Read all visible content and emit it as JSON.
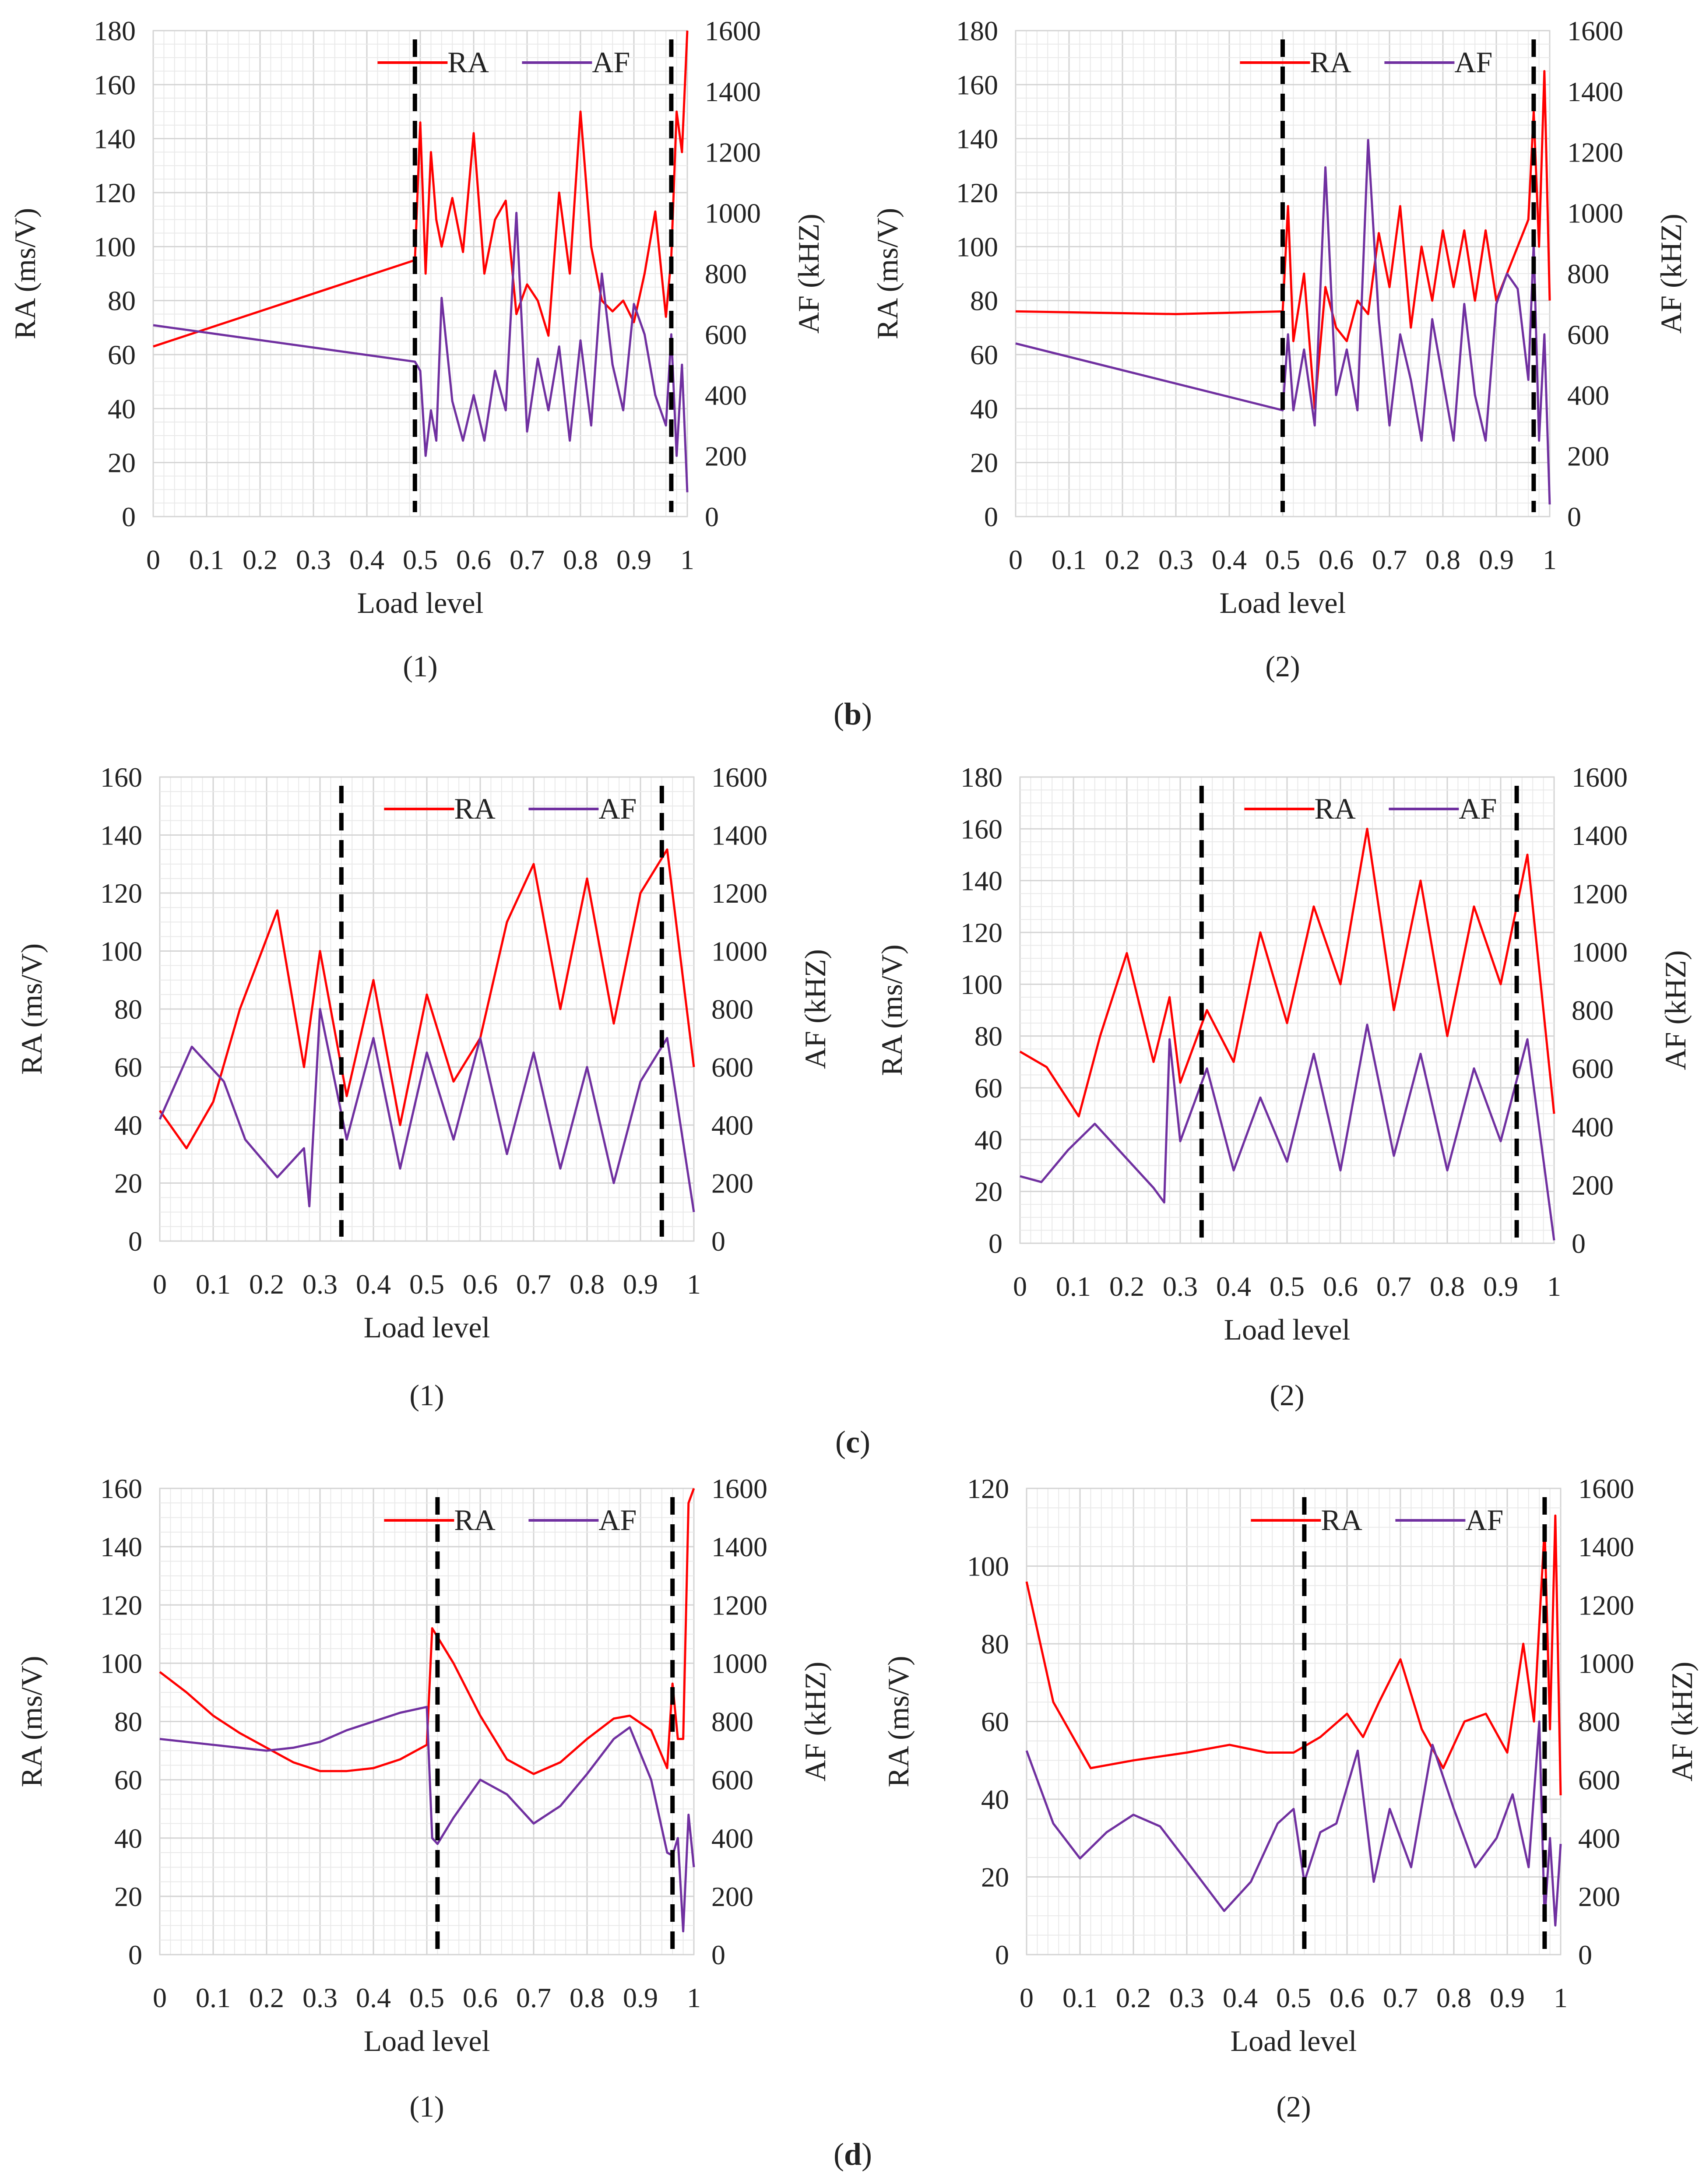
{
  "colors": {
    "RA": "#ff0000",
    "AF": "#7030a0",
    "marker": "#000000"
  },
  "group_captions": [
    "b",
    "c",
    "d"
  ],
  "chart_data": [
    {
      "type": "line",
      "group": "b",
      "caption": "(1)",
      "xlabel": "Load level",
      "ylabel": "RA (ms/V)",
      "y2label": "AF (kHZ)",
      "xlim": [
        0,
        1
      ],
      "ylim": [
        0,
        180
      ],
      "y2lim": [
        0,
        1600
      ],
      "xticks": [
        "0",
        "0.1",
        "0.2",
        "0.3",
        "0.4",
        "0.5",
        "0.6",
        "0.7",
        "0.8",
        "0.9",
        "1"
      ],
      "yticks": [
        "0",
        "20",
        "40",
        "60",
        "80",
        "100",
        "120",
        "140",
        "160",
        "180"
      ],
      "y2ticks": [
        "0",
        "200",
        "400",
        "600",
        "800",
        "1000",
        "1200",
        "1400",
        "1600"
      ],
      "legend": [
        "RA",
        "AF"
      ],
      "legend_position": "top-right",
      "grid": true,
      "vlines": [
        0.49,
        0.97
      ],
      "series": [
        {
          "name": "RA",
          "axis": "left",
          "x": [
            0,
            0.49,
            0.5,
            0.51,
            0.52,
            0.53,
            0.54,
            0.56,
            0.58,
            0.6,
            0.62,
            0.64,
            0.66,
            0.68,
            0.7,
            0.72,
            0.74,
            0.76,
            0.78,
            0.8,
            0.82,
            0.84,
            0.86,
            0.88,
            0.9,
            0.92,
            0.94,
            0.96,
            0.97,
            0.98,
            0.99,
            1
          ],
          "y": [
            63,
            95,
            146,
            90,
            135,
            110,
            100,
            118,
            98,
            142,
            90,
            110,
            117,
            75,
            86,
            80,
            67,
            120,
            90,
            150,
            100,
            80,
            76,
            80,
            72,
            90,
            113,
            74,
            96,
            150,
            135,
            180
          ]
        },
        {
          "name": "AF",
          "axis": "right",
          "x": [
            0,
            0.49,
            0.5,
            0.51,
            0.52,
            0.53,
            0.54,
            0.56,
            0.58,
            0.6,
            0.62,
            0.64,
            0.66,
            0.68,
            0.7,
            0.72,
            0.74,
            0.76,
            0.78,
            0.8,
            0.82,
            0.84,
            0.86,
            0.88,
            0.9,
            0.92,
            0.94,
            0.96,
            0.97,
            0.98,
            0.99,
            1
          ],
          "y": [
            630,
            510,
            480,
            200,
            350,
            250,
            720,
            380,
            250,
            400,
            250,
            480,
            350,
            1000,
            280,
            520,
            350,
            560,
            250,
            580,
            300,
            800,
            500,
            350,
            700,
            600,
            400,
            300,
            600,
            200,
            500,
            80
          ]
        }
      ]
    },
    {
      "type": "line",
      "group": "b",
      "caption": "(2)",
      "xlabel": "Load level",
      "ylabel": "RA (ms/V)",
      "y2label": "AF (kHZ)",
      "xlim": [
        0,
        1
      ],
      "ylim": [
        0,
        180
      ],
      "y2lim": [
        0,
        1600
      ],
      "xticks": [
        "0",
        "0.1",
        "0.2",
        "0.3",
        "0.4",
        "0.5",
        "0.6",
        "0.7",
        "0.8",
        "0.9",
        "1"
      ],
      "yticks": [
        "0",
        "20",
        "40",
        "60",
        "80",
        "100",
        "120",
        "140",
        "160",
        "180"
      ],
      "y2ticks": [
        "0",
        "200",
        "400",
        "600",
        "800",
        "1000",
        "1200",
        "1400",
        "1600"
      ],
      "legend": [
        "RA",
        "AF"
      ],
      "legend_position": "top-right",
      "grid": true,
      "vlines": [
        0.5,
        0.97
      ],
      "series": [
        {
          "name": "RA",
          "axis": "left",
          "x": [
            0,
            0.3,
            0.5,
            0.51,
            0.52,
            0.54,
            0.56,
            0.58,
            0.6,
            0.62,
            0.64,
            0.66,
            0.68,
            0.7,
            0.72,
            0.74,
            0.76,
            0.78,
            0.8,
            0.82,
            0.84,
            0.86,
            0.88,
            0.9,
            0.92,
            0.94,
            0.96,
            0.97,
            0.98,
            0.99,
            1
          ],
          "y": [
            76,
            75,
            76,
            115,
            65,
            90,
            40,
            85,
            70,
            65,
            80,
            75,
            105,
            85,
            115,
            70,
            100,
            80,
            106,
            85,
            106,
            80,
            106,
            80,
            90,
            100,
            110,
            150,
            100,
            165,
            80
          ]
        },
        {
          "name": "AF",
          "axis": "right",
          "x": [
            0,
            0.5,
            0.51,
            0.52,
            0.54,
            0.56,
            0.58,
            0.6,
            0.62,
            0.64,
            0.66,
            0.68,
            0.7,
            0.72,
            0.74,
            0.76,
            0.78,
            0.8,
            0.82,
            0.84,
            0.86,
            0.88,
            0.9,
            0.92,
            0.94,
            0.96,
            0.97,
            0.98,
            0.99,
            1
          ],
          "y": [
            570,
            350,
            600,
            350,
            550,
            300,
            1150,
            400,
            550,
            350,
            1240,
            650,
            300,
            600,
            450,
            250,
            650,
            450,
            250,
            700,
            400,
            250,
            700,
            800,
            750,
            450,
            900,
            250,
            600,
            40
          ]
        }
      ]
    },
    {
      "type": "line",
      "group": "c",
      "caption": "(1)",
      "xlabel": "Load level",
      "ylabel": "RA (ms/V)",
      "y2label": "AF (kHZ)",
      "xlim": [
        0,
        1
      ],
      "ylim": [
        0,
        160
      ],
      "y2lim": [
        0,
        1600
      ],
      "xticks": [
        "0",
        "0.1",
        "0.2",
        "0.3",
        "0.4",
        "0.5",
        "0.6",
        "0.7",
        "0.8",
        "0.9",
        "1"
      ],
      "yticks": [
        "0",
        "20",
        "40",
        "60",
        "80",
        "100",
        "120",
        "140",
        "160"
      ],
      "y2ticks": [
        "0",
        "200",
        "400",
        "600",
        "800",
        "1000",
        "1200",
        "1400",
        "1600"
      ],
      "legend": [
        "RA",
        "AF"
      ],
      "legend_position": "top-right",
      "grid": true,
      "vlines": [
        0.34,
        0.94
      ],
      "series": [
        {
          "name": "RA",
          "axis": "left",
          "x": [
            0,
            0.05,
            0.1,
            0.15,
            0.22,
            0.27,
            0.3,
            0.35,
            0.4,
            0.45,
            0.5,
            0.55,
            0.6,
            0.65,
            0.7,
            0.75,
            0.8,
            0.85,
            0.9,
            0.95,
            1
          ],
          "y": [
            45,
            32,
            48,
            80,
            114,
            60,
            100,
            50,
            90,
            40,
            85,
            55,
            70,
            110,
            130,
            80,
            125,
            75,
            120,
            135,
            60
          ]
        },
        {
          "name": "AF",
          "axis": "right",
          "x": [
            0,
            0.06,
            0.12,
            0.16,
            0.22,
            0.27,
            0.28,
            0.3,
            0.35,
            0.4,
            0.45,
            0.5,
            0.55,
            0.6,
            0.65,
            0.7,
            0.75,
            0.8,
            0.85,
            0.9,
            0.95,
            1
          ],
          "y": [
            420,
            670,
            550,
            350,
            220,
            320,
            120,
            800,
            350,
            700,
            250,
            650,
            350,
            700,
            300,
            650,
            250,
            600,
            200,
            550,
            700,
            100
          ]
        }
      ]
    },
    {
      "type": "line",
      "group": "c",
      "caption": "(2)",
      "xlabel": "Load level",
      "ylabel": "RA (ms/V)",
      "y2label": "AF (kHZ)",
      "xlim": [
        0,
        1
      ],
      "ylim": [
        0,
        180
      ],
      "y2lim": [
        0,
        1600
      ],
      "xticks": [
        "0",
        "0.1",
        "0.2",
        "0.3",
        "0.4",
        "0.5",
        "0.6",
        "0.7",
        "0.8",
        "0.9",
        "1"
      ],
      "yticks": [
        "0",
        "20",
        "40",
        "60",
        "80",
        "100",
        "120",
        "140",
        "160",
        "180"
      ],
      "y2ticks": [
        "0",
        "200",
        "400",
        "600",
        "800",
        "1000",
        "1200",
        "1400",
        "1600"
      ],
      "legend": [
        "RA",
        "AF"
      ],
      "legend_position": "top-right",
      "grid": true,
      "vlines": [
        0.34,
        0.93
      ],
      "series": [
        {
          "name": "RA",
          "axis": "left",
          "x": [
            0,
            0.05,
            0.11,
            0.15,
            0.2,
            0.25,
            0.28,
            0.3,
            0.35,
            0.4,
            0.45,
            0.5,
            0.55,
            0.6,
            0.65,
            0.7,
            0.75,
            0.8,
            0.85,
            0.9,
            0.95,
            1
          ],
          "y": [
            74,
            68,
            49,
            80,
            112,
            70,
            95,
            62,
            90,
            70,
            120,
            85,
            130,
            100,
            160,
            90,
            140,
            80,
            130,
            100,
            150,
            50
          ]
        },
        {
          "name": "AF",
          "axis": "right",
          "x": [
            0,
            0.04,
            0.09,
            0.14,
            0.2,
            0.25,
            0.27,
            0.28,
            0.3,
            0.35,
            0.4,
            0.45,
            0.5,
            0.55,
            0.6,
            0.65,
            0.7,
            0.75,
            0.8,
            0.85,
            0.9,
            0.95,
            1
          ],
          "y": [
            230,
            210,
            320,
            410,
            290,
            190,
            140,
            700,
            350,
            600,
            250,
            500,
            280,
            650,
            250,
            750,
            300,
            650,
            250,
            600,
            350,
            700,
            10
          ]
        }
      ]
    },
    {
      "type": "line",
      "group": "d",
      "caption": "(1)",
      "xlabel": "Load level",
      "ylabel": "RA (ms/V)",
      "y2label": "AF (kHZ)",
      "xlim": [
        0,
        1
      ],
      "ylim": [
        0,
        160
      ],
      "y2lim": [
        0,
        1600
      ],
      "xticks": [
        "0",
        "0.1",
        "0.2",
        "0.3",
        "0.4",
        "0.5",
        "0.6",
        "0.7",
        "0.8",
        "0.9",
        "1"
      ],
      "yticks": [
        "0",
        "20",
        "40",
        "60",
        "80",
        "100",
        "120",
        "140",
        "160"
      ],
      "y2ticks": [
        "0",
        "200",
        "400",
        "600",
        "800",
        "1000",
        "1200",
        "1400",
        "1600"
      ],
      "legend": [
        "RA",
        "AF"
      ],
      "legend_position": "top-right",
      "grid": true,
      "vlines": [
        0.52,
        0.96
      ],
      "series": [
        {
          "name": "RA",
          "axis": "left",
          "x": [
            0,
            0.05,
            0.1,
            0.15,
            0.2,
            0.25,
            0.3,
            0.35,
            0.4,
            0.45,
            0.5,
            0.51,
            0.55,
            0.6,
            0.65,
            0.7,
            0.75,
            0.8,
            0.85,
            0.88,
            0.92,
            0.95,
            0.96,
            0.97,
            0.98,
            0.99,
            1
          ],
          "y": [
            97,
            90,
            82,
            76,
            71,
            66,
            63,
            63,
            64,
            67,
            72,
            112,
            100,
            82,
            67,
            62,
            66,
            74,
            81,
            82,
            77,
            64,
            93,
            74,
            74,
            155,
            160
          ]
        },
        {
          "name": "AF",
          "axis": "right",
          "x": [
            0,
            0.1,
            0.2,
            0.25,
            0.3,
            0.35,
            0.4,
            0.45,
            0.5,
            0.51,
            0.52,
            0.55,
            0.6,
            0.65,
            0.7,
            0.75,
            0.8,
            0.85,
            0.88,
            0.92,
            0.95,
            0.96,
            0.97,
            0.98,
            0.99,
            1
          ],
          "y": [
            740,
            720,
            700,
            710,
            730,
            770,
            800,
            830,
            850,
            400,
            380,
            470,
            600,
            550,
            450,
            510,
            620,
            740,
            780,
            600,
            350,
            340,
            400,
            80,
            480,
            300
          ]
        }
      ]
    },
    {
      "type": "line",
      "group": "d",
      "caption": "(2)",
      "xlabel": "Load level",
      "ylabel": "RA (ms/V)",
      "y2label": "AF (kHZ)",
      "xlim": [
        0,
        1
      ],
      "ylim": [
        0,
        120
      ],
      "y2lim": [
        0,
        1600
      ],
      "xticks": [
        "0",
        "0.1",
        "0.2",
        "0.3",
        "0.4",
        "0.5",
        "0.6",
        "0.7",
        "0.8",
        "0.9",
        "1"
      ],
      "yticks": [
        "0",
        "20",
        "40",
        "60",
        "80",
        "100",
        "120"
      ],
      "y2ticks": [
        "0",
        "200",
        "400",
        "600",
        "800",
        "1000",
        "1200",
        "1400",
        "1600"
      ],
      "legend": [
        "RA",
        "AF"
      ],
      "legend_position": "top-right",
      "grid": true,
      "vlines": [
        0.52,
        0.97
      ],
      "series": [
        {
          "name": "RA",
          "axis": "left",
          "x": [
            0,
            0.05,
            0.12,
            0.2,
            0.3,
            0.38,
            0.45,
            0.5,
            0.55,
            0.6,
            0.63,
            0.66,
            0.7,
            0.74,
            0.78,
            0.82,
            0.86,
            0.9,
            0.93,
            0.95,
            0.97,
            0.98,
            0.99,
            1
          ],
          "y": [
            96,
            65,
            48,
            50,
            52,
            54,
            52,
            52,
            56,
            62,
            56,
            65,
            76,
            58,
            48,
            60,
            62,
            52,
            80,
            60,
            110,
            58,
            113,
            41
          ]
        },
        {
          "name": "AF",
          "axis": "right",
          "x": [
            0,
            0.05,
            0.1,
            0.15,
            0.2,
            0.25,
            0.3,
            0.37,
            0.42,
            0.47,
            0.5,
            0.52,
            0.55,
            0.58,
            0.62,
            0.65,
            0.68,
            0.72,
            0.76,
            0.8,
            0.84,
            0.88,
            0.91,
            0.94,
            0.96,
            0.97,
            0.98,
            0.99,
            1
          ],
          "y": [
            700,
            450,
            330,
            420,
            480,
            440,
            320,
            150,
            250,
            450,
            500,
            250,
            420,
            450,
            700,
            250,
            500,
            300,
            720,
            500,
            300,
            400,
            550,
            300,
            800,
            120,
            400,
            100,
            380
          ]
        }
      ]
    }
  ]
}
